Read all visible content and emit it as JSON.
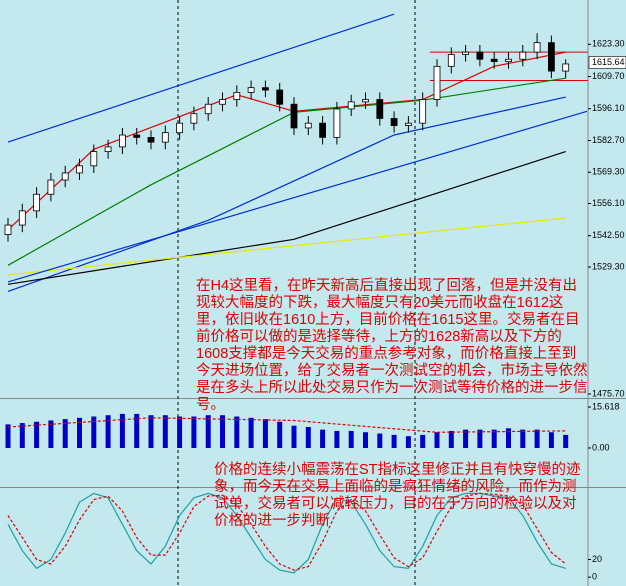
{
  "chart_data": [
    {
      "type": "candlestick",
      "xlim": [
        -0.56,
        40.56
      ],
      "ylim": [
        1474,
        1642
      ],
      "yticks": [
        {
          "value": 1623.3,
          "label": "1623.30"
        },
        {
          "value": 1609.7,
          "label": "1609.70"
        },
        {
          "value": 1596.1,
          "label": "1596.10"
        },
        {
          "value": 1582.7,
          "label": "1582.70"
        },
        {
          "value": 1569.3,
          "label": "1569.30"
        },
        {
          "value": 1556.1,
          "label": "1556.10"
        },
        {
          "value": 1542.5,
          "label": "1542.50"
        },
        {
          "value": 1529.3,
          "label": "1529.30"
        },
        {
          "value": 1475.7,
          "label": "1475.70"
        }
      ],
      "up_color": "#ffffff",
      "down_color": "#000000",
      "open": [
        1543,
        1547,
        1553,
        1560,
        1566,
        1569,
        1572,
        1578,
        1580,
        1585,
        1584,
        1582,
        1586,
        1590,
        1594,
        1598,
        1600,
        1603,
        1605,
        1604,
        1598,
        1588,
        1590,
        1584,
        1596,
        1599,
        1600,
        1592,
        1589,
        1590,
        1600,
        1614,
        1619,
        1620,
        1617,
        1616,
        1617,
        1620,
        1624,
        1612
      ],
      "high": [
        1550,
        1556,
        1563,
        1569,
        1572,
        1575,
        1581,
        1583,
        1588,
        1588,
        1587,
        1589,
        1593,
        1597,
        1601,
        1603,
        1606,
        1608,
        1608,
        1607,
        1601,
        1593,
        1593,
        1599,
        1602,
        1603,
        1603,
        1595,
        1593,
        1603,
        1617,
        1622,
        1623,
        1623,
        1620,
        1620,
        1623,
        1628,
        1627,
        1617
      ],
      "low": [
        1540,
        1544,
        1550,
        1557,
        1563,
        1566,
        1569,
        1575,
        1577,
        1581,
        1579,
        1579,
        1583,
        1587,
        1591,
        1595,
        1597,
        1600,
        1601,
        1595,
        1585,
        1585,
        1581,
        1581,
        1593,
        1596,
        1589,
        1586,
        1586,
        1587,
        1597,
        1611,
        1616,
        1614,
        1613,
        1613,
        1614,
        1617,
        1609,
        1609
      ],
      "close": [
        1547,
        1553,
        1560,
        1566,
        1569,
        1572,
        1578,
        1580,
        1585,
        1584,
        1582,
        1586,
        1590,
        1594,
        1598,
        1600,
        1603,
        1605,
        1604,
        1598,
        1588,
        1590,
        1584,
        1596,
        1599,
        1600,
        1592,
        1589,
        1590,
        1600,
        1614,
        1619,
        1620,
        1617,
        1616,
        1617,
        1620,
        1624,
        1612,
        1615
      ],
      "series": [
        {
          "color": "#e00000",
          "x": [
            0,
            6,
            16,
            20,
            29,
            34,
            39
          ],
          "values": [
            1545,
            1579,
            1602,
            1595,
            1600,
            1614,
            1620
          ]
        },
        {
          "color": "#008000",
          "x": [
            0,
            10,
            20,
            29,
            39
          ],
          "values": [
            1530,
            1564,
            1594.6,
            1599.7,
            1609
          ]
        },
        {
          "color": "#0030d0",
          "x": [
            0,
            14,
            27,
            39
          ],
          "values": [
            1519,
            1549,
            1585,
            1601
          ]
        },
        {
          "color": "#000000",
          "x": [
            0,
            20,
            39
          ],
          "values": [
            1522,
            1541,
            1578
          ]
        },
        {
          "color": "#e8e800",
          "x": [
            0,
            39
          ],
          "values": [
            1526,
            1550
          ]
        },
        {
          "color": "#0030d0",
          "x": [
            0,
            27
          ],
          "values": [
            1582,
            1636
          ]
        },
        {
          "color": "#0030d0",
          "x": [
            0,
            40.5
          ],
          "values": [
            1523,
            1595
          ]
        }
      ],
      "hlines": [
        {
          "value": 1620,
          "color": "#e00000"
        },
        {
          "value": 1608,
          "color": "#e00000"
        }
      ],
      "price_label": 1615.64
    },
    {
      "type": "bar",
      "color": "#0000c8",
      "xlim": [
        -0.56,
        40.56
      ],
      "ylim": [
        -14.5,
        18.3
      ],
      "yticks": [
        15.618,
        {
          "value": 0,
          "label": "0.00"
        }
      ],
      "values": [
        9,
        9.5,
        10,
        10.5,
        11,
        11.5,
        12,
        12.5,
        13,
        13,
        12.5,
        12.5,
        12,
        12,
        12.5,
        12.5,
        12,
        11.5,
        11,
        10,
        8.5,
        8,
        7,
        6.5,
        6.5,
        6,
        5.5,
        5,
        4.5,
        5,
        6,
        6.5,
        7,
        7,
        7,
        7.5,
        7,
        7,
        6,
        5
      ],
      "series": [
        {
          "color": "#e00000",
          "x": [
            0,
            10,
            20,
            30,
            39
          ],
          "values": [
            8,
            11.5,
            10.5,
            6,
            6.5
          ]
        }
      ]
    },
    {
      "type": "line",
      "xlim": [
        -0.56,
        40.56
      ],
      "ylim": [
        -10,
        100
      ],
      "yticks": [
        20,
        0
      ],
      "series": [
        {
          "color": "#20a0a0",
          "values": [
            60,
            30,
            10,
            20,
            50,
            85,
            95,
            90,
            60,
            30,
            15,
            35,
            70,
            90,
            95,
            90,
            70,
            45,
            20,
            8,
            5,
            20,
            60,
            90,
            85,
            60,
            30,
            12,
            10,
            35,
            70,
            90,
            95,
            95,
            92,
            90,
            70,
            40,
            15,
            10
          ]
        },
        {
          "color": "#e00000",
          "values": [
            70,
            45,
            20,
            15,
            35,
            65,
            88,
            92,
            75,
            45,
            25,
            25,
            50,
            80,
            92,
            93,
            82,
            60,
            35,
            15,
            8,
            12,
            40,
            75,
            88,
            75,
            48,
            22,
            12,
            22,
            52,
            80,
            92,
            95,
            94,
            92,
            82,
            55,
            28,
            15
          ]
        }
      ]
    }
  ],
  "annotations": [
    "在H4这里看，在昨天新高后直接出现了回落，但是并没有出现较大幅度的下跌，最大幅度只有20美元而收盘在1612这里，依旧收在1610上方，目前价格在1615这里。交易者在目前价格可以做的是选择等待，上方的1628新高以及下方的1608支撑都是今天交易的重点参考对象，而价格直接上至到今天进场位置，给了交易者一次测试空的机会，市场主导依然是在多头上所以此处交易只作为一次测试等待价格的进一步信号。",
    "价格的连续小幅震荡在ST指标这里修正并且有快穿慢的迹象，而今天在交易上面临的是疯狂情绪的风险，而作为测试单，交易者可以减轻压力，目的在于方向的检验以及对价格的进一步判断"
  ]
}
